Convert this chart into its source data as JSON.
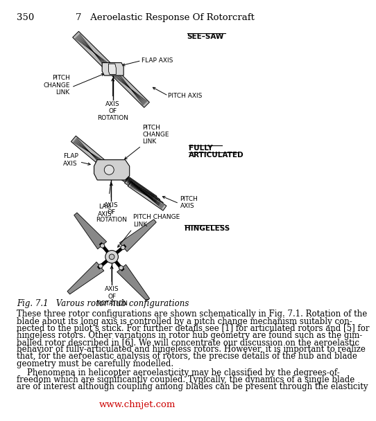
{
  "page_number": "350",
  "chapter_header": "7   Aeroelastic Response Of Rotorcraft",
  "fig_caption": "Fig. 7.1   Varous rotor hub configurations",
  "watermark": "www.chnjet.com",
  "watermark_color": "#cc0000",
  "background_color": "#ffffff",
  "text_color": "#000000",
  "link_color": "#1a4ab5",
  "see_saw_label": "SEE–SAW",
  "fully_label1": "FULLY",
  "fully_label2": "ARTICULATED",
  "hingeless_label": "HINGELESS",
  "body_lines_p1": [
    "These three rotor configurations are shown schematically in Fig. 7.1. Rotation of the",
    "blade about its long axis is controlled by a pitch change mechanism suitably con-",
    "nected to the pilot’s stick. For further details see [1] for articulated rotors and [5] for",
    "hingeless rotors. Other variations in rotor hub geometry are found such as the gim-",
    "balled rotor described in [6]. We will concentrate our discussion on the aeroelastic",
    "behavior of fully-articulated and hingeless rotors. However, it is important to realize",
    "that, for the aeroelastic analysis of rotors, the precise details of the hub and blade",
    "geometry must be carefully modelled."
  ],
  "body_lines_p2": [
    "    Phenomena in helicopter aeroelasticity may be classified by the degrees-of-",
    "freedom which are significantly coupled. Typically, the dynamics of a single blade",
    "are of interest although coupling among blades can be present through the elasticity"
  ],
  "font_size_body": 8.5,
  "font_size_caption": 8.5,
  "font_size_header": 9.5,
  "font_size_label": 7.0,
  "font_size_annot": 6.5
}
